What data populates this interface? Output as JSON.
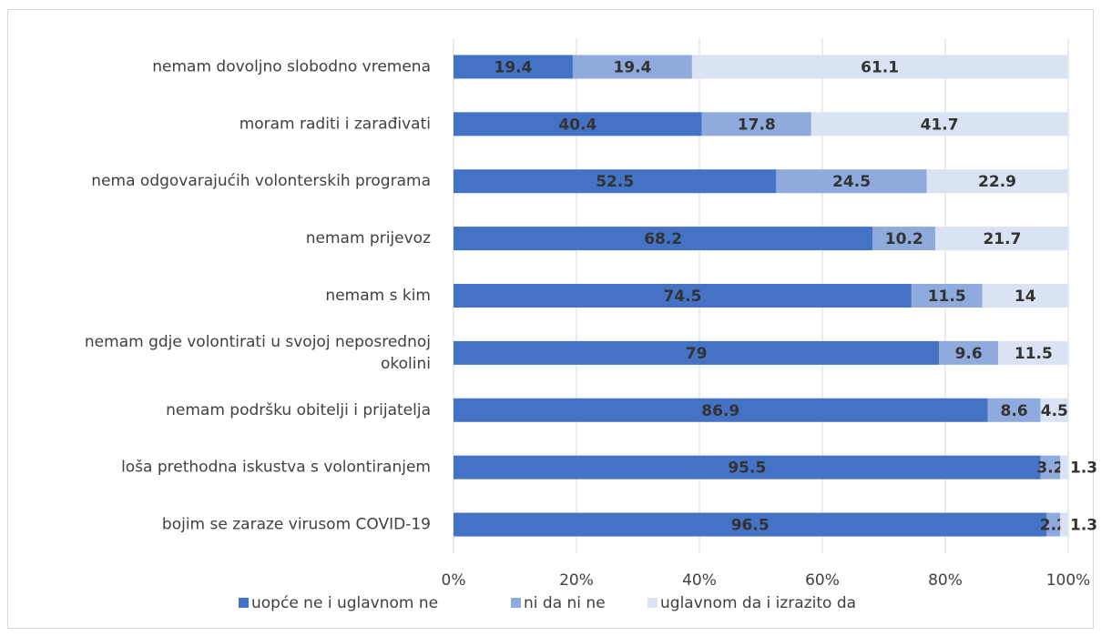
{
  "chart_data": {
    "type": "stacked_bar_horizontal",
    "categories": [
      "nemam dovoljno slobodno vremena",
      "moram raditi i zarađivati",
      "nema odgovarajućih volonterskih programa",
      "nemam prijevoz",
      "nemam s kim",
      "nemam gdje volontirati u svojoj neposrednoj okolini",
      "nemam podršku obitelji i prijatelja",
      "loša prethodna iskustva s volontiranjem",
      "bojim se zaraze virusom COVID-19"
    ],
    "series": [
      {
        "name": "uopće ne i uglavnom ne",
        "color": "#4472c4",
        "values": [
          19.4,
          40.4,
          52.5,
          68.2,
          74.5,
          79,
          86.9,
          95.5,
          96.5
        ]
      },
      {
        "name": "ni da ni ne",
        "color": "#8faadc",
        "values": [
          19.4,
          17.8,
          24.5,
          10.2,
          11.5,
          9.6,
          8.6,
          3.2,
          2.2
        ]
      },
      {
        "name": "uglavnom da i izrazito da",
        "color": "#dae3f3",
        "values": [
          61.1,
          41.7,
          22.9,
          21.7,
          14,
          11.5,
          4.5,
          1.3,
          1.3
        ]
      }
    ],
    "xlim": [
      0,
      100
    ],
    "xticks": [
      {
        "value": 0,
        "label": "0%"
      },
      {
        "value": 20,
        "label": "20%"
      },
      {
        "value": 40,
        "label": "40%"
      },
      {
        "value": 60,
        "label": "60%"
      },
      {
        "value": 80,
        "label": "80%"
      },
      {
        "value": 100,
        "label": "100%"
      }
    ],
    "grid": true,
    "legend": "bottom"
  }
}
